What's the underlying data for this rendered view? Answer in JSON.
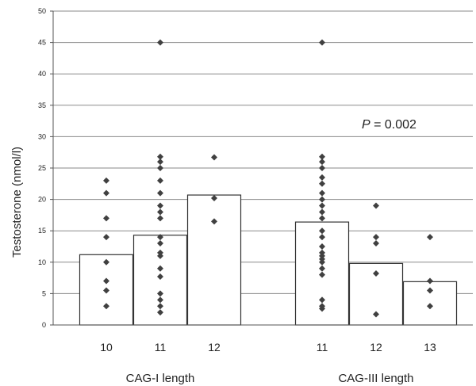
{
  "chart_data": {
    "type": "bar",
    "ylabel": "Testosterone (nmol/l)",
    "ylim": [
      0,
      50
    ],
    "yticks": [
      "0",
      "5",
      "10",
      "15",
      "20",
      "25",
      "30",
      "35",
      "40",
      "45",
      "50"
    ],
    "grid": true,
    "annotation": {
      "label": "P",
      "text": " = 0.002"
    },
    "groups": [
      {
        "label": "CAG-I length",
        "categories": [
          "10",
          "11",
          "12"
        ],
        "values": [
          11.2,
          14.3,
          20.7
        ],
        "points": [
          [
            23.0,
            21.0,
            17.0,
            14.0,
            10.0,
            7.0,
            5.5,
            3.0
          ],
          [
            45.0,
            26.8,
            26.0,
            25.0,
            23.0,
            21.0,
            19.0,
            18.0,
            17.0,
            14.0,
            13.0,
            11.5,
            11.0,
            9.0,
            7.7,
            5.0,
            4.0,
            3.0,
            2.0
          ],
          [
            26.7,
            20.2,
            16.5
          ]
        ]
      },
      {
        "label": "CAG-III length",
        "categories": [
          "11",
          "12",
          "13"
        ],
        "values": [
          16.4,
          9.8,
          6.9
        ],
        "points": [
          [
            45.0,
            26.8,
            26.0,
            25.0,
            23.5,
            22.5,
            21.0,
            20.0,
            19.0,
            18.0,
            17.0,
            15.0,
            14.0,
            12.5,
            11.5,
            11.0,
            10.5,
            10.0,
            9.0,
            8.0,
            4.0,
            3.0,
            2.6
          ],
          [
            19.0,
            14.0,
            13.0,
            8.2,
            1.7
          ],
          [
            14.0,
            7.0,
            5.5,
            3.0
          ]
        ]
      }
    ]
  }
}
